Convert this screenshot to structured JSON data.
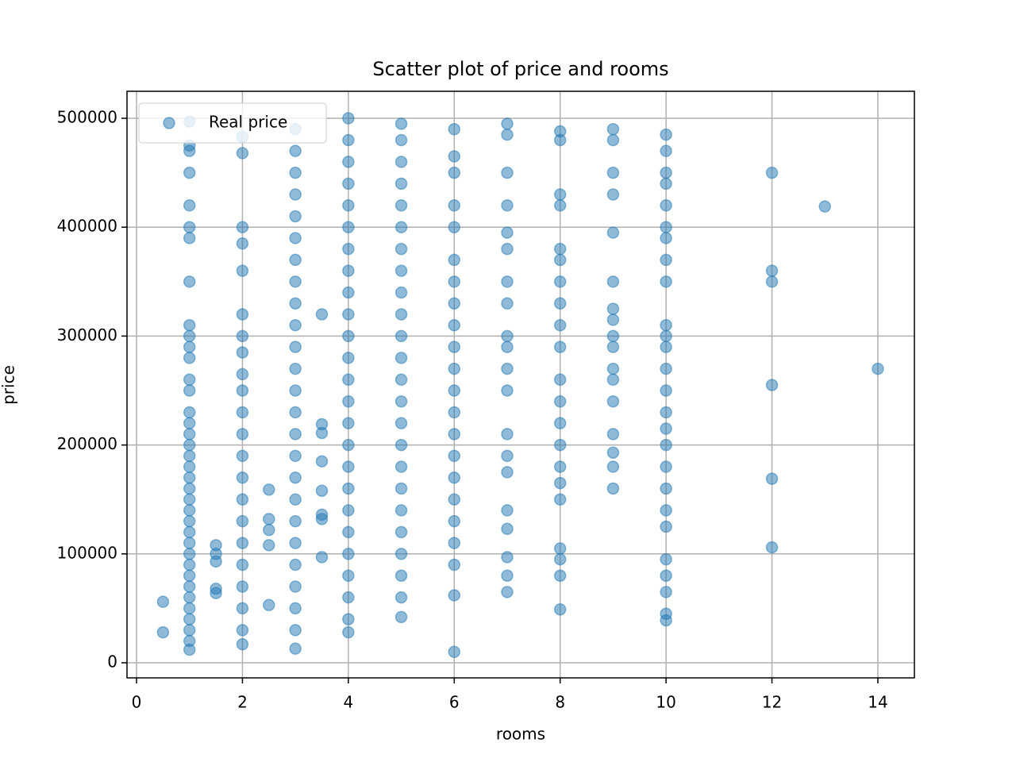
{
  "chart_data": {
    "type": "scatter",
    "title": "Scatter plot of price and rooms",
    "x_label": "rooms",
    "y_label": "price",
    "xlim": [
      -0.18,
      14.69
    ],
    "ylim": [
      -13850,
      524800
    ],
    "xticks": [
      0,
      2,
      4,
      6,
      8,
      10,
      12,
      14
    ],
    "yticks": [
      0,
      100000,
      200000,
      300000,
      400000,
      500000
    ],
    "grid": true,
    "legend": "upper left",
    "series": [
      {
        "name": "Real price",
        "color": "#1f77b4",
        "x": [
          0.5,
          0.5,
          1,
          1,
          1,
          1,
          1,
          1,
          1,
          1,
          1,
          1,
          1,
          1,
          1,
          1,
          1,
          1,
          1,
          1,
          1,
          1,
          1,
          1,
          1,
          1,
          1,
          1,
          1,
          1,
          1,
          1,
          1,
          1,
          1,
          1,
          1,
          1,
          1,
          1.5,
          1.5,
          1.5,
          1.5,
          1.5,
          2,
          2,
          2,
          2,
          2,
          2,
          2,
          2,
          2,
          2,
          2,
          2,
          2,
          2,
          2,
          2,
          2,
          2,
          2,
          2,
          2,
          2,
          2.5,
          2.5,
          2.5,
          2.5,
          2.5,
          3,
          3,
          3,
          3,
          3,
          3,
          3,
          3,
          3,
          3,
          3,
          3,
          3,
          3,
          3,
          3,
          3,
          3,
          3,
          3,
          3,
          3,
          3,
          3,
          3,
          3.5,
          3.5,
          3.5,
          3.5,
          3.5,
          3.5,
          3.5,
          3.5,
          4,
          4,
          4,
          4,
          4,
          4,
          4,
          4,
          4,
          4,
          4,
          4,
          4,
          4,
          4,
          4,
          4,
          4,
          4,
          4,
          4,
          4,
          4,
          4,
          4,
          5,
          5,
          5,
          5,
          5,
          5,
          5,
          5,
          5,
          5,
          5,
          5,
          5,
          5,
          5,
          5,
          5,
          5,
          5,
          5,
          5,
          5,
          5,
          5,
          6,
          6,
          6,
          6,
          6,
          6,
          6,
          6,
          6,
          6,
          6,
          6,
          6,
          6,
          6,
          6,
          6,
          6,
          6,
          6,
          6,
          6,
          7,
          7,
          7,
          7,
          7,
          7,
          7,
          7,
          7,
          7,
          7,
          7,
          7,
          7,
          7,
          7,
          7,
          7,
          7,
          7,
          8,
          8,
          8,
          8,
          8,
          8,
          8,
          8,
          8,
          8,
          8,
          8,
          8,
          8,
          8,
          8,
          8,
          8,
          8,
          8,
          8,
          9,
          9,
          9,
          9,
          9,
          9,
          9,
          9,
          9,
          9,
          9,
          9,
          9,
          9,
          9,
          9,
          9,
          10,
          10,
          10,
          10,
          10,
          10,
          10,
          10,
          10,
          10,
          10,
          10,
          10,
          10,
          10,
          10,
          10,
          10,
          10,
          10,
          10,
          10,
          10,
          10,
          10,
          10,
          12,
          12,
          12,
          12,
          12,
          12,
          13,
          14
        ],
        "values": [
          28000,
          56000,
          12000,
          20000,
          30000,
          40000,
          50000,
          60000,
          70000,
          80000,
          90000,
          100000,
          110000,
          120000,
          130000,
          140000,
          150000,
          160000,
          170000,
          180000,
          190000,
          200000,
          210000,
          220000,
          230000,
          250000,
          260000,
          280000,
          290000,
          300000,
          310000,
          350000,
          390000,
          400000,
          420000,
          450000,
          470000,
          475000,
          497000,
          64000,
          68000,
          93000,
          100000,
          108000,
          17000,
          30000,
          50000,
          70000,
          90000,
          110000,
          130000,
          150000,
          170000,
          190000,
          210000,
          230000,
          250000,
          265000,
          285000,
          300000,
          320000,
          360000,
          385000,
          400000,
          468000,
          483000,
          53000,
          108000,
          122000,
          132000,
          159000,
          13000,
          30000,
          50000,
          70000,
          90000,
          110000,
          130000,
          150000,
          170000,
          190000,
          210000,
          230000,
          250000,
          270000,
          290000,
          310000,
          330000,
          350000,
          370000,
          390000,
          410000,
          430000,
          450000,
          470000,
          490000,
          97000,
          132000,
          136000,
          158000,
          185000,
          211000,
          219000,
          320000,
          28000,
          40000,
          60000,
          80000,
          100000,
          120000,
          140000,
          160000,
          180000,
          200000,
          220000,
          240000,
          260000,
          280000,
          300000,
          320000,
          340000,
          360000,
          380000,
          400000,
          420000,
          440000,
          460000,
          480000,
          500000,
          42000,
          60000,
          80000,
          100000,
          120000,
          140000,
          160000,
          180000,
          200000,
          220000,
          240000,
          260000,
          280000,
          300000,
          320000,
          340000,
          360000,
          380000,
          400000,
          420000,
          440000,
          460000,
          480000,
          495000,
          10000,
          62000,
          90000,
          110000,
          130000,
          150000,
          170000,
          190000,
          210000,
          230000,
          250000,
          270000,
          290000,
          310000,
          330000,
          350000,
          370000,
          400000,
          420000,
          450000,
          465000,
          490000,
          65000,
          80000,
          97000,
          123000,
          140000,
          175000,
          190000,
          210000,
          250000,
          270000,
          290000,
          300000,
          330000,
          350000,
          380000,
          395000,
          420000,
          450000,
          485000,
          495000,
          49000,
          80000,
          95000,
          105000,
          150000,
          165000,
          180000,
          200000,
          220000,
          240000,
          260000,
          290000,
          310000,
          330000,
          350000,
          370000,
          380000,
          420000,
          430000,
          480000,
          488000,
          160000,
          180000,
          193000,
          210000,
          240000,
          260000,
          270000,
          290000,
          300000,
          315000,
          325000,
          350000,
          395000,
          430000,
          450000,
          480000,
          490000,
          39000,
          45000,
          65000,
          80000,
          95000,
          125000,
          140000,
          160000,
          180000,
          200000,
          215000,
          230000,
          250000,
          270000,
          290000,
          300000,
          310000,
          350000,
          370000,
          390000,
          400000,
          420000,
          440000,
          450000,
          470000,
          485000,
          106000,
          169000,
          255000,
          350000,
          360000,
          450000,
          419000,
          270000
        ]
      }
    ]
  }
}
